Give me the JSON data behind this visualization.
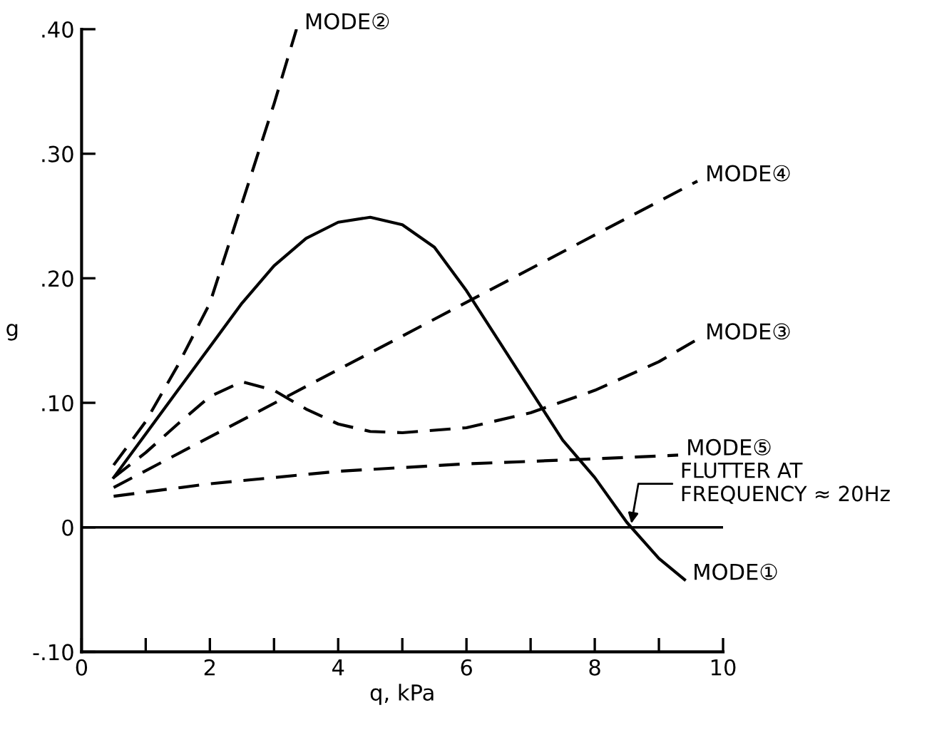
{
  "chart_data": {
    "type": "line",
    "xlabel": "q, kPa",
    "ylabel": "g",
    "xlim": [
      0,
      10
    ],
    "ylim": [
      -0.1,
      0.4
    ],
    "xticks": [
      0,
      {
        "value": 1,
        "label": null
      },
      2,
      {
        "value": 3,
        "label": null
      },
      4,
      {
        "value": 5,
        "label": null
      },
      6,
      {
        "value": 7,
        "label": null
      },
      8,
      {
        "value": 9,
        "label": null
      },
      10
    ],
    "yticks": [
      {
        "value": -0.1,
        "label": "-.10"
      },
      0,
      {
        "value": 0.1,
        "label": ".10"
      },
      {
        "value": 0.2,
        "label": ".20"
      },
      {
        "value": 0.3,
        "label": ".30"
      },
      {
        "value": 0.4,
        "label": ".40"
      }
    ],
    "grid": false,
    "legend": false,
    "marker": "none",
    "ref_lines": [
      {
        "axis": "y",
        "value": 0,
        "color": "#000000",
        "line_style": "solid"
      }
    ],
    "annotations": [
      {
        "text": "FLUTTER AT\nFREQUENCY ≈ 20Hz",
        "x": 8.56,
        "y": 0
      }
    ],
    "series": [
      {
        "name": "MODE①",
        "color": "#000000",
        "line_style": "solid",
        "x": [
          0.5,
          1,
          1.5,
          2,
          2.5,
          3,
          3.5,
          4,
          4.5,
          5,
          5.5,
          6,
          6.5,
          7,
          7.5,
          8,
          8.5,
          9,
          9.4
        ],
        "values": [
          0.04,
          0.075,
          0.11,
          0.145,
          0.18,
          0.21,
          0.232,
          0.245,
          0.249,
          0.243,
          0.225,
          0.19,
          0.15,
          0.11,
          0.07,
          0.04,
          0.004,
          -0.025,
          -0.042
        ]
      },
      {
        "name": "MODE②",
        "color": "#000000",
        "line_style": "dashed",
        "x": [
          0.5,
          1,
          1.5,
          2,
          2.5,
          3,
          3.35
        ],
        "values": [
          0.05,
          0.085,
          0.13,
          0.18,
          0.26,
          0.34,
          0.4
        ]
      },
      {
        "name": "MODE③",
        "color": "#000000",
        "line_style": "dashed",
        "x": [
          0.5,
          1,
          1.5,
          2,
          2.5,
          3,
          3.5,
          4,
          4.5,
          5,
          6,
          7,
          8,
          9,
          9.6
        ],
        "values": [
          0.04,
          0.06,
          0.083,
          0.105,
          0.117,
          0.11,
          0.095,
          0.083,
          0.077,
          0.076,
          0.08,
          0.092,
          0.11,
          0.133,
          0.151
        ]
      },
      {
        "name": "MODE④",
        "color": "#000000",
        "line_style": "dashed",
        "x": [
          0.5,
          9.6
        ],
        "values": [
          0.032,
          0.278
        ]
      },
      {
        "name": "MODE⑤",
        "color": "#000000",
        "line_style": "dashed",
        "x": [
          0.5,
          2,
          4,
          6,
          8,
          9.3
        ],
        "values": [
          0.025,
          0.035,
          0.045,
          0.051,
          0.055,
          0.058
        ]
      }
    ]
  }
}
